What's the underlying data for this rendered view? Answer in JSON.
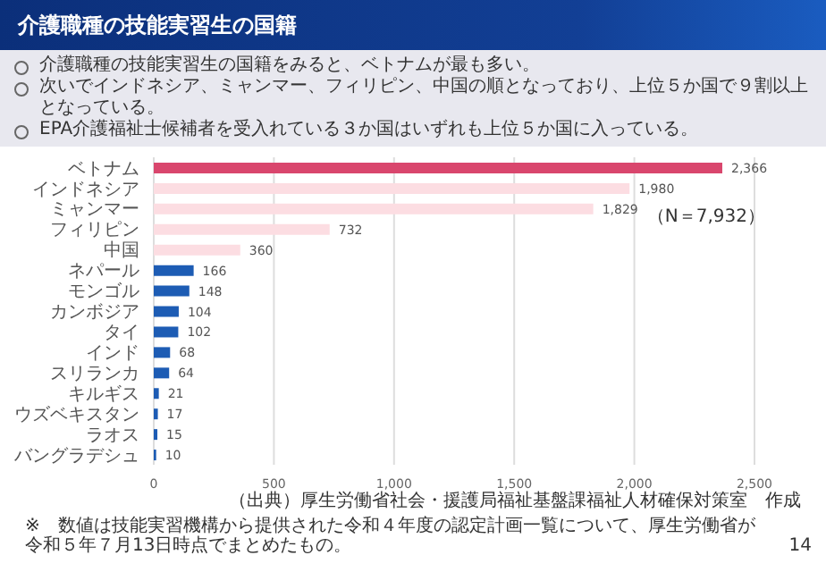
{
  "chart_data": {
    "type": "bar",
    "orientation": "horizontal",
    "title": "介護職種の技能実習生の国籍",
    "categories": [
      "ベトナム",
      "インドネシア",
      "ミャンマー",
      "フィリピン",
      "中国",
      "ネパール",
      "モンゴル",
      "カンボジア",
      "タイ",
      "インド",
      "スリランカ",
      "キルギス",
      "ウズベキスタン",
      "ラオス",
      "バングラデシュ"
    ],
    "values": [
      2366,
      1980,
      1829,
      732,
      360,
      166,
      148,
      104,
      102,
      68,
      64,
      21,
      17,
      15,
      10
    ],
    "value_labels": [
      "2,366",
      "1,980",
      "1,829",
      "732",
      "360",
      "166",
      "148",
      "104",
      "102",
      "68",
      "64",
      "21",
      "17",
      "15",
      "10"
    ],
    "colors": [
      "#d9466d",
      "#fcdde2",
      "#fcdde2",
      "#fcdde2",
      "#fcdde2",
      "#1d5cb4",
      "#1d5cb4",
      "#1d5cb4",
      "#1d5cb4",
      "#1d5cb4",
      "#1d5cb4",
      "#1d5cb4",
      "#1d5cb4",
      "#1d5cb4",
      "#1d5cb4"
    ],
    "xlim": [
      0,
      2500
    ],
    "xticks": [
      0,
      500,
      {
        "value": 1000,
        "label": "1,000"
      },
      {
        "value": 1500,
        "label": "1,500"
      },
      {
        "value": 2000,
        "label": "2,000"
      },
      {
        "value": 2500,
        "label": "2,500"
      }
    ],
    "grid": "x",
    "annotations": [
      "介護職種の技能実習生の国籍をみると、ベトナムが最も多い。",
      "次いでインドネシア、ミャンマー、フィリピン、中国の順となっており、上位５か国で９割以上となっている。",
      "EPA介護福祉士候補者を受入れている３か国はいずれも上位５か国に入っている。",
      "（N＝7,932）",
      "（出典）厚生労働省社会・援護局福祉基盤課福祉人材確保対策室　作成",
      "※　数値は技能実習機構から提供された令和４年度の認定計画一覧について、厚生労働省が令和５年７月13日時点でまとめたもの。",
      "14"
    ]
  }
}
